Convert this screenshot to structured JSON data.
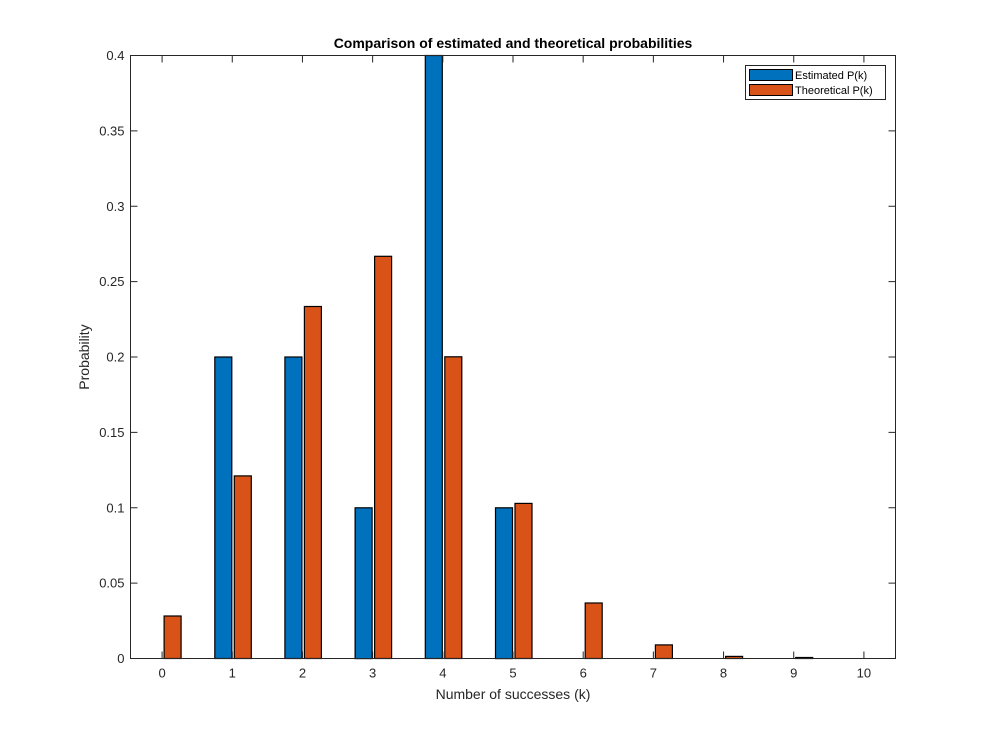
{
  "chart_data": {
    "type": "bar",
    "title": "Comparison of estimated and theoretical probabilities",
    "xlabel": "Number of successes (k)",
    "ylabel": "Probability",
    "categories": [
      "0",
      "1",
      "2",
      "3",
      "4",
      "5",
      "6",
      "7",
      "8",
      "9",
      "10"
    ],
    "x": [
      0,
      1,
      2,
      3,
      4,
      5,
      6,
      7,
      8,
      9,
      10
    ],
    "series": [
      {
        "name": "Estimated P(k)",
        "color": "#0072BD",
        "values": [
          0,
          0.2,
          0.2,
          0.1,
          0.4,
          0.1,
          0,
          0,
          0,
          0,
          0
        ]
      },
      {
        "name": "Theoretical P(k)",
        "color": "#D95319",
        "values": [
          0.0282,
          0.1211,
          0.2335,
          0.2668,
          0.2001,
          0.1029,
          0.0368,
          0.009,
          0.0014,
          0.0001,
          0.0
        ]
      }
    ],
    "xlim": [
      -0.45,
      10.45
    ],
    "ylim": [
      0,
      0.4
    ],
    "yticks": [
      0,
      0.05,
      0.1,
      0.15,
      0.2,
      0.25,
      0.3,
      0.35,
      0.4
    ],
    "ytick_labels": [
      "0",
      "0.05",
      "0.1",
      "0.15",
      "0.2",
      "0.25",
      "0.3",
      "0.35",
      "0.4"
    ],
    "xticks": [
      0,
      1,
      2,
      3,
      4,
      5,
      6,
      7,
      8,
      9,
      10
    ],
    "xtick_labels": [
      "0",
      "1",
      "2",
      "3",
      "4",
      "5",
      "6",
      "7",
      "8",
      "9",
      "10"
    ],
    "grid": false,
    "legend": {
      "position": "top-right",
      "entries": [
        "Estimated P(k)",
        "Theoretical P(k)"
      ]
    }
  }
}
